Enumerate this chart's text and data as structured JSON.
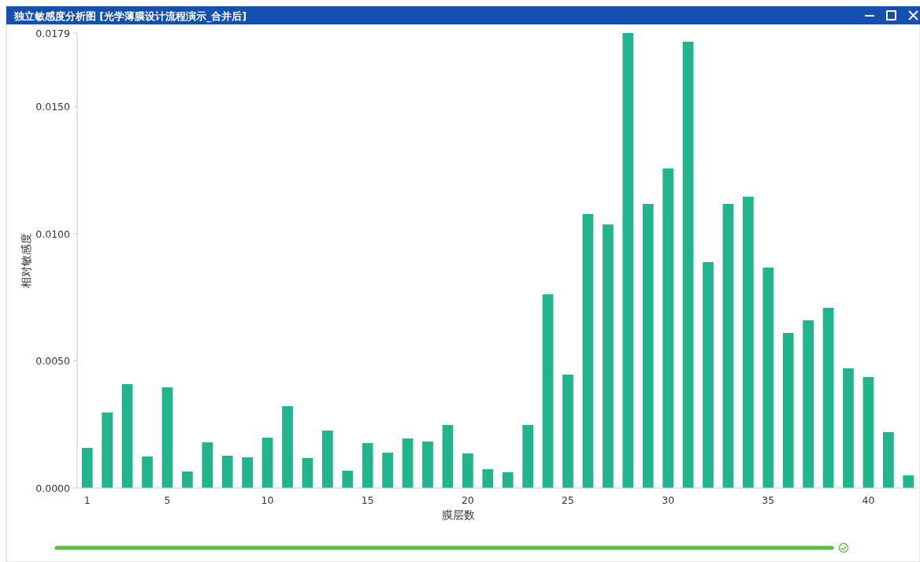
{
  "chart_data": {
    "type": "bar",
    "title": "独立敏感度分析图 [光学薄膜设计流程演示_合并后]",
    "xlabel": "膜层数",
    "ylabel": "相对敏感度",
    "categories": [
      "1",
      null,
      null,
      null,
      "5",
      null,
      null,
      null,
      null,
      "10",
      null,
      null,
      null,
      null,
      "15",
      null,
      null,
      null,
      null,
      "20",
      null,
      null,
      null,
      null,
      "25",
      null,
      null,
      null,
      null,
      "30",
      null,
      null,
      null,
      null,
      "35",
      null,
      null,
      null,
      null,
      "40",
      null,
      null
    ],
    "values": [
      0.00158,
      0.00297,
      0.00409,
      0.00124,
      0.00396,
      0.00065,
      0.0018,
      0.00127,
      0.00121,
      0.00198,
      0.00322,
      0.00118,
      0.00226,
      0.00068,
      0.00177,
      0.00139,
      0.00195,
      0.00183,
      0.00248,
      0.00136,
      0.00074,
      0.00062,
      0.00248,
      0.00762,
      0.00446,
      0.01078,
      0.01037,
      0.0179,
      0.01118,
      0.01257,
      0.01756,
      0.00889,
      0.01118,
      0.01146,
      0.00867,
      0.0061,
      0.0066,
      0.00709,
      0.00471,
      0.00437,
      0.0022,
      0.0005
    ],
    "color": "#22b48c",
    "ylim": [
      0,
      0.0179
    ],
    "yticks": [
      {
        "value": 0,
        "label": "0.0000"
      },
      {
        "value": 0.005,
        "label": "0.0050"
      },
      {
        "value": 0.01,
        "label": "0.0100"
      },
      {
        "value": 0.015,
        "label": "0.0150"
      },
      {
        "value": 0.0179,
        "label": "0.0179"
      }
    ],
    "grid": false
  }
}
